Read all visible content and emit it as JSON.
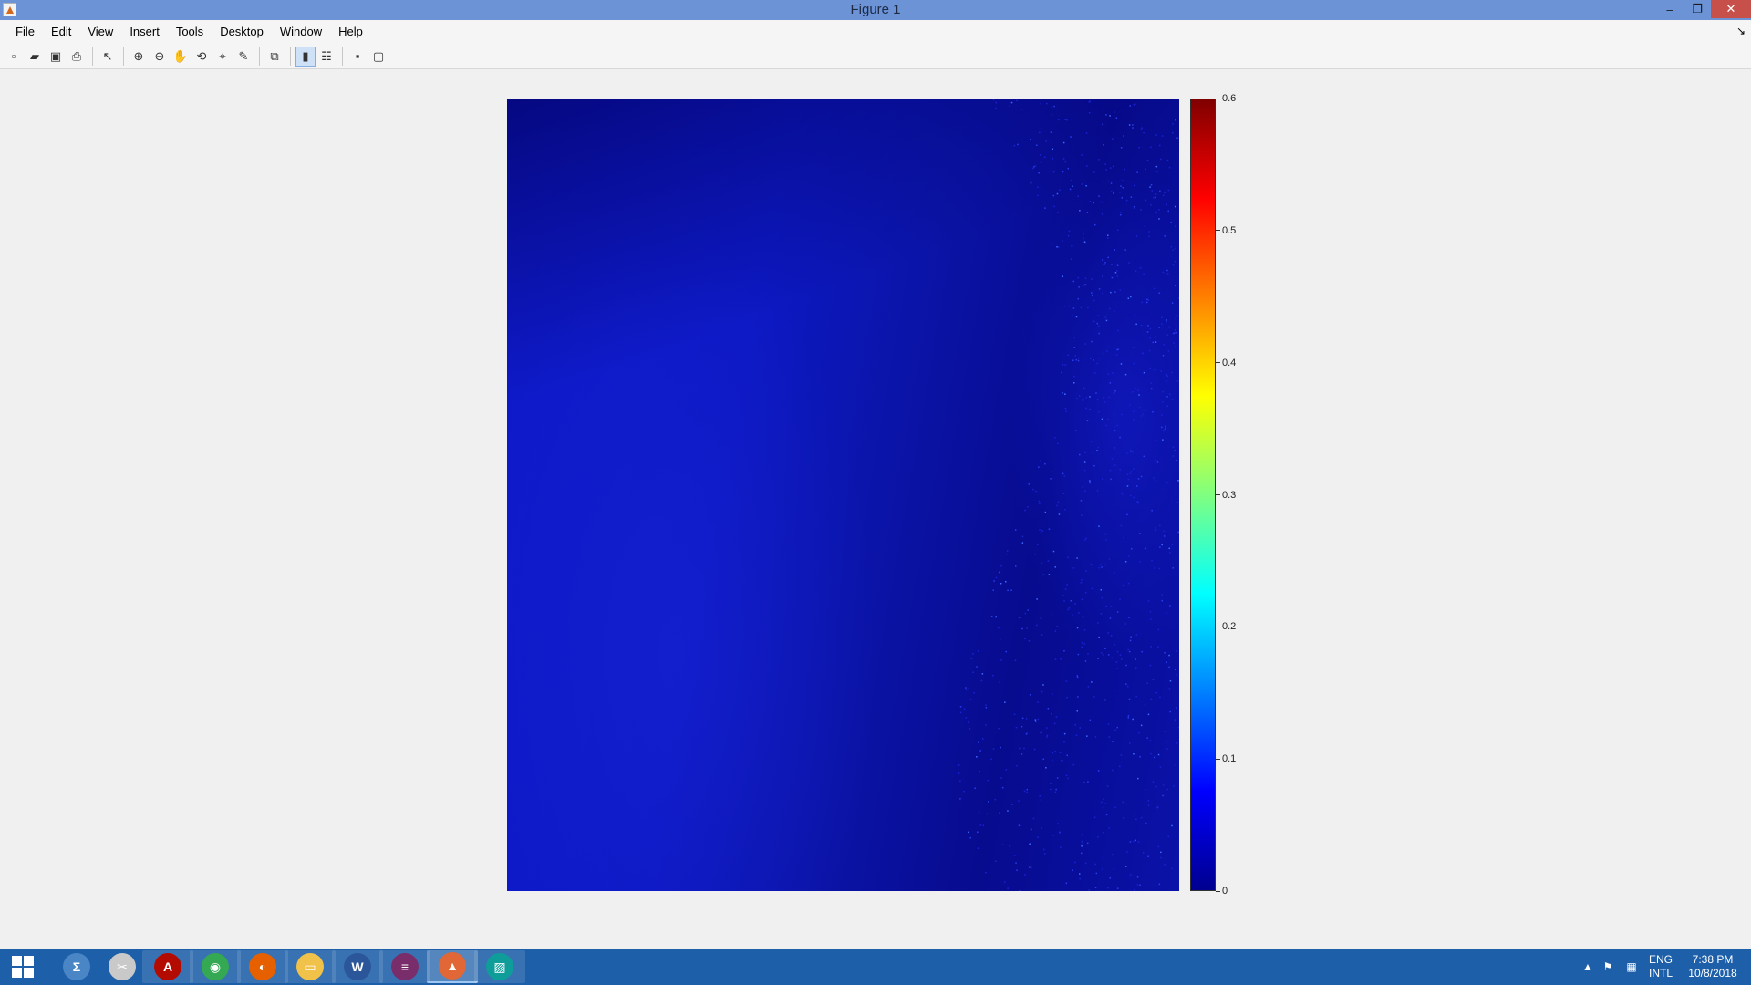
{
  "window": {
    "title": "Figure 1",
    "minimize_glyph": "–",
    "maximize_glyph": "❐",
    "close_glyph": "✕"
  },
  "menu": {
    "items": [
      "File",
      "Edit",
      "View",
      "Insert",
      "Tools",
      "Desktop",
      "Window",
      "Help"
    ],
    "dock_glyph": "↘"
  },
  "toolbar": {
    "buttons": [
      {
        "icon": "new-figure-icon",
        "glyph": "▫"
      },
      {
        "icon": "open-file-icon",
        "glyph": "▰"
      },
      {
        "icon": "save-icon",
        "glyph": "▣"
      },
      {
        "icon": "print-icon",
        "glyph": "⎙"
      },
      {
        "icon": "edit-plot-arrow-icon",
        "glyph": "↖"
      },
      {
        "icon": "zoom-in-icon",
        "glyph": "⊕"
      },
      {
        "icon": "zoom-out-icon",
        "glyph": "⊖"
      },
      {
        "icon": "pan-hand-icon",
        "glyph": "✋"
      },
      {
        "icon": "rotate-3d-icon",
        "glyph": "⟲"
      },
      {
        "icon": "data-cursor-icon",
        "glyph": "⌖"
      },
      {
        "icon": "brush-icon",
        "glyph": "✎"
      },
      {
        "icon": "link-plot-icon",
        "glyph": "⧉"
      },
      {
        "icon": "colorbar-icon",
        "glyph": "▮"
      },
      {
        "icon": "legend-icon",
        "glyph": "☷"
      },
      {
        "icon": "hide-plot-tools-icon",
        "glyph": "▪"
      },
      {
        "icon": "show-plot-tools-icon",
        "glyph": "▢"
      }
    ]
  },
  "colors": {
    "titlebar": "#6b93d6",
    "taskbar": "#1d5fa8",
    "plot_dark": "#070b8e",
    "plot_mid": "#0f1bcc"
  },
  "chart_data": {
    "type": "heatmap",
    "colormap": "jet",
    "clim": [
      0,
      0.6
    ],
    "colorbar_ticks": [
      "0",
      "0.1",
      "0.2",
      "0.3",
      "0.4",
      "0.5",
      "0.6"
    ],
    "colorbar_tick_values": [
      0,
      0.1,
      0.2,
      0.3,
      0.4,
      0.5,
      0.6
    ],
    "value_range_observed": [
      0.0,
      0.15
    ],
    "title": "",
    "xlabel": "",
    "ylabel": "",
    "axes_visible": false
  },
  "taskbar": {
    "apps": [
      {
        "name": "calculator-app",
        "glyph": "Σ",
        "color": "#4a86c5"
      },
      {
        "name": "snipping-tool-app",
        "glyph": "✂",
        "color": "#c9c9c9"
      },
      {
        "name": "acrobat-app",
        "glyph": "A",
        "color": "#b30b00"
      },
      {
        "name": "chrome-app",
        "glyph": "◉",
        "color": "#34a853"
      },
      {
        "name": "firefox-app",
        "glyph": "◐",
        "color": "#e66000"
      },
      {
        "name": "file-explorer-app",
        "glyph": "▭",
        "color": "#f0c24a"
      },
      {
        "name": "word-app",
        "glyph": "W",
        "color": "#2b579a"
      },
      {
        "name": "winrar-app",
        "glyph": "≡",
        "color": "#7a2d6b"
      },
      {
        "name": "matlab-app",
        "glyph": "▲",
        "color": "#e16737"
      },
      {
        "name": "photos-app",
        "glyph": "▨",
        "color": "#0f9d9a"
      }
    ],
    "language": {
      "line1": "ENG",
      "line2": "INTL"
    },
    "clock": {
      "time": "7:38 PM",
      "date": "10/8/2018"
    },
    "tray_glyphs": {
      "chevron": "▲",
      "flag": "⚑",
      "network": "▦"
    }
  }
}
